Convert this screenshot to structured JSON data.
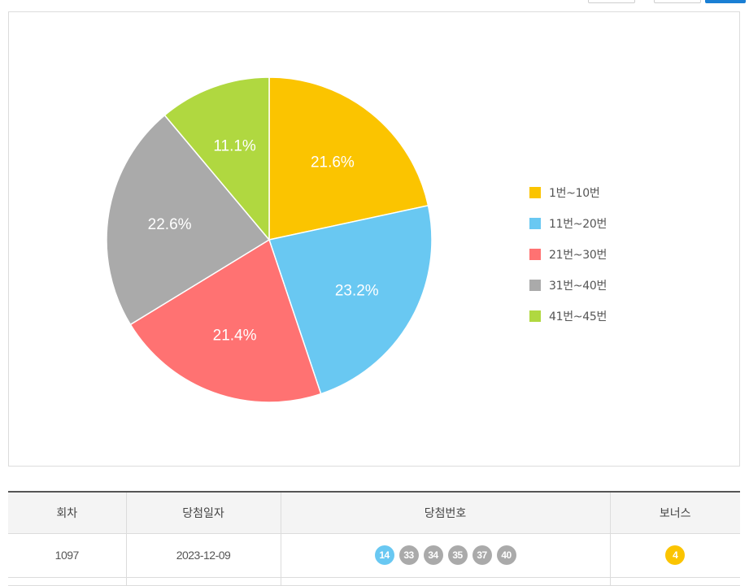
{
  "chart_data": {
    "type": "pie",
    "categories": [
      "1번~10번",
      "11번~20번",
      "21번~30번",
      "31번~40번",
      "41번~45번"
    ],
    "values": [
      21.6,
      23.2,
      21.4,
      22.6,
      11.1
    ],
    "labels": [
      "21.6%",
      "23.2%",
      "21.4%",
      "22.6%",
      "11.1%"
    ],
    "colors": [
      "#fbc400",
      "#69c8f2",
      "#ff7272",
      "#aaaaaa",
      "#b0d840"
    ],
    "legend_position": "right"
  },
  "table": {
    "headers": [
      "회차",
      "당첨일자",
      "당첨번호",
      "보너스"
    ],
    "rows": [
      {
        "round": "1097",
        "date": "2023-12-09",
        "numbers": [
          {
            "n": "14",
            "color": "#69c8f2"
          },
          {
            "n": "33",
            "color": "#aaaaaa"
          },
          {
            "n": "34",
            "color": "#aaaaaa"
          },
          {
            "n": "35",
            "color": "#aaaaaa"
          },
          {
            "n": "37",
            "color": "#aaaaaa"
          },
          {
            "n": "40",
            "color": "#aaaaaa"
          }
        ],
        "bonus": {
          "n": "4",
          "color": "#fbc400"
        }
      }
    ]
  }
}
